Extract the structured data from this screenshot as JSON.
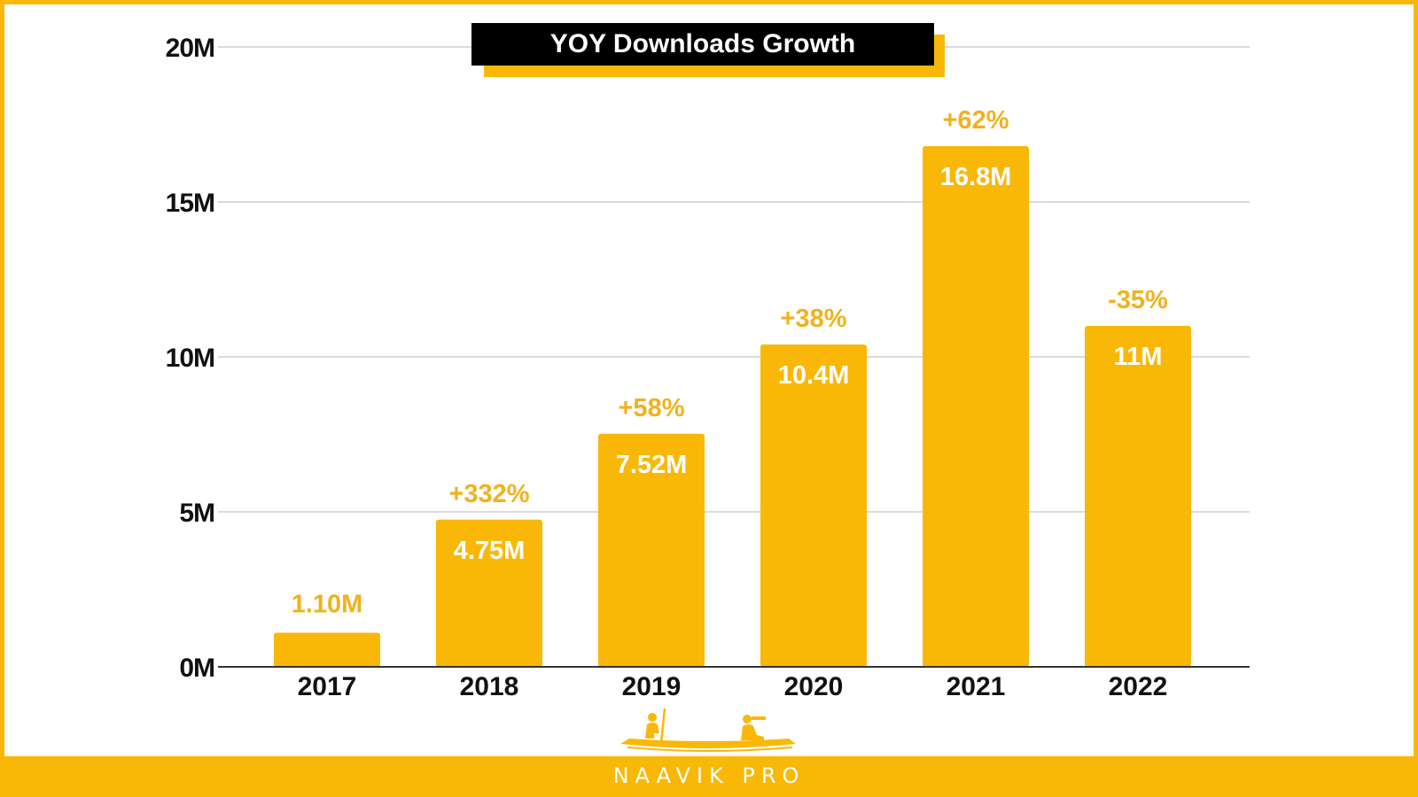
{
  "title": "YOY Downloads Growth",
  "brand": "NAAVIK PRO",
  "colors": {
    "bar": "#f9b808",
    "grid": "#cfcfcf",
    "axis": "#333333",
    "tick_text": "#111111",
    "bar_label": "#ffffff",
    "growth_label": "#f0b21c"
  },
  "chart_data": {
    "type": "bar",
    "title": "YOY Downloads Growth",
    "categories": [
      "2017",
      "2018",
      "2019",
      "2020",
      "2021",
      "2022"
    ],
    "values": [
      1.1,
      4.75,
      7.52,
      10.4,
      16.8,
      11
    ],
    "value_labels": [
      "1.10M",
      "4.75M",
      "7.52M",
      "10.4M",
      "16.8M",
      "11M"
    ],
    "growth_labels": [
      "",
      "+332%",
      "+58%",
      "+38%",
      "+62%",
      "-35%"
    ],
    "ylim": [
      0,
      20
    ],
    "yticks": [
      0,
      5,
      10,
      15,
      20
    ],
    "ytick_labels": [
      "0M",
      "5M",
      "10M",
      "15M",
      "20M"
    ],
    "xlabel": "",
    "ylabel": "",
    "grid": true,
    "legend": "none"
  }
}
